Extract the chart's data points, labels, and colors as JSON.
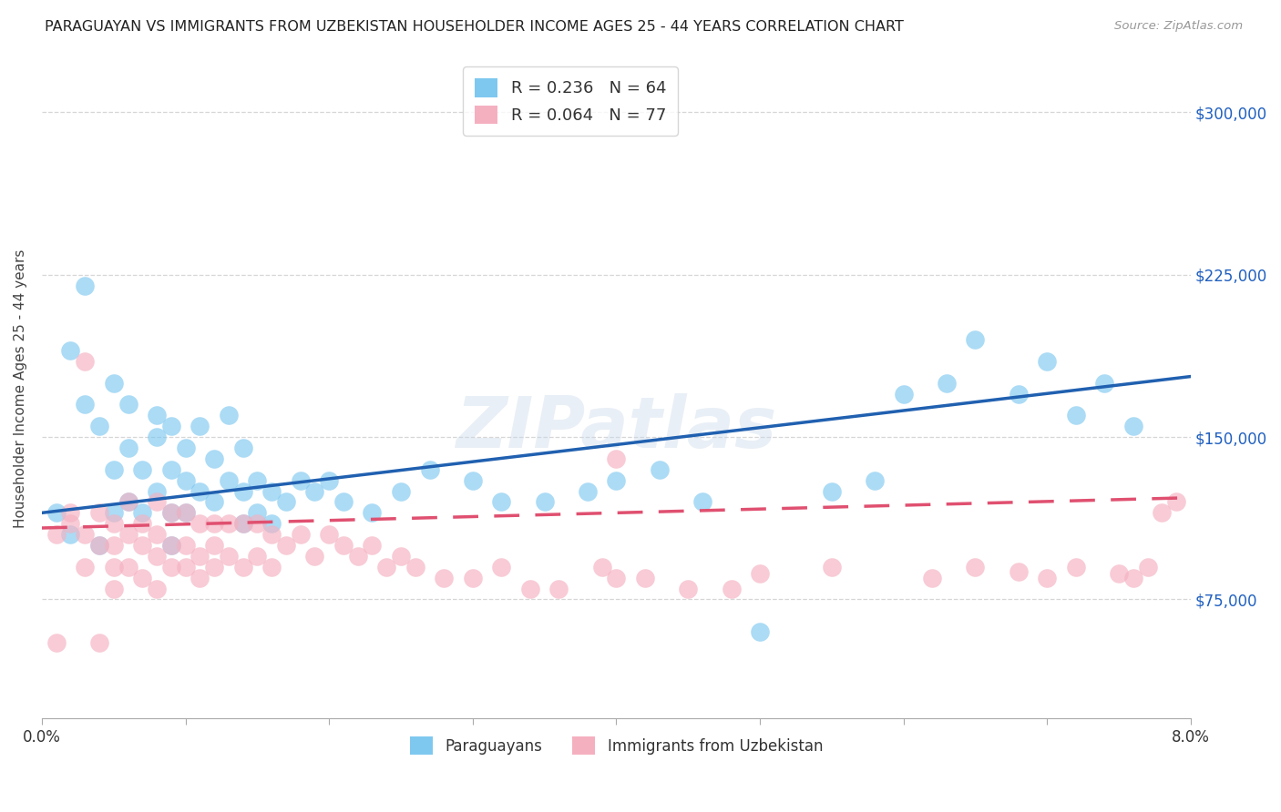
{
  "title": "PARAGUAYAN VS IMMIGRANTS FROM UZBEKISTAN HOUSEHOLDER INCOME AGES 25 - 44 YEARS CORRELATION CHART",
  "source": "Source: ZipAtlas.com",
  "ylabel": "Householder Income Ages 25 - 44 years",
  "xmin": 0.0,
  "xmax": 0.08,
  "ymin": 20000,
  "ymax": 325000,
  "yticks": [
    75000,
    150000,
    225000,
    300000
  ],
  "ytick_labels": [
    "$75,000",
    "$150,000",
    "$225,000",
    "$300,000"
  ],
  "xticks": [
    0.0,
    0.01,
    0.02,
    0.03,
    0.04,
    0.05,
    0.06,
    0.07,
    0.08
  ],
  "xtick_labels_show": [
    "0.0%",
    "",
    "",
    "",
    "",
    "",
    "",
    "",
    "8.0%"
  ],
  "blue_color": "#7ec8f0",
  "pink_color": "#f5b0c0",
  "blue_line_color": "#2060b0",
  "pink_line_color": "#e05070",
  "legend_blue_label": "R = 0.236   N = 64",
  "legend_pink_label": "R = 0.064   N = 77",
  "legend_r_color": "#2060c0",
  "watermark": "ZIPatlas",
  "paraguayans_label": "Paraguayans",
  "uzbekistan_label": "Immigrants from Uzbekistan",
  "blue_scatter_x": [
    0.001,
    0.002,
    0.002,
    0.003,
    0.003,
    0.004,
    0.004,
    0.005,
    0.005,
    0.005,
    0.006,
    0.006,
    0.006,
    0.007,
    0.007,
    0.008,
    0.008,
    0.008,
    0.009,
    0.009,
    0.009,
    0.009,
    0.01,
    0.01,
    0.01,
    0.011,
    0.011,
    0.012,
    0.012,
    0.013,
    0.013,
    0.014,
    0.014,
    0.014,
    0.015,
    0.015,
    0.016,
    0.016,
    0.017,
    0.018,
    0.019,
    0.02,
    0.021,
    0.023,
    0.025,
    0.027,
    0.03,
    0.032,
    0.035,
    0.038,
    0.04,
    0.043,
    0.046,
    0.05,
    0.055,
    0.058,
    0.06,
    0.063,
    0.065,
    0.068,
    0.07,
    0.072,
    0.074,
    0.076
  ],
  "blue_scatter_y": [
    115000,
    190000,
    105000,
    220000,
    165000,
    155000,
    100000,
    175000,
    135000,
    115000,
    165000,
    145000,
    120000,
    115000,
    135000,
    160000,
    150000,
    125000,
    155000,
    135000,
    115000,
    100000,
    145000,
    130000,
    115000,
    155000,
    125000,
    140000,
    120000,
    160000,
    130000,
    145000,
    125000,
    110000,
    130000,
    115000,
    125000,
    110000,
    120000,
    130000,
    125000,
    130000,
    120000,
    115000,
    125000,
    135000,
    130000,
    120000,
    120000,
    125000,
    130000,
    135000,
    120000,
    60000,
    125000,
    130000,
    170000,
    175000,
    195000,
    170000,
    185000,
    160000,
    175000,
    155000
  ],
  "pink_scatter_x": [
    0.001,
    0.001,
    0.002,
    0.002,
    0.003,
    0.003,
    0.003,
    0.004,
    0.004,
    0.004,
    0.005,
    0.005,
    0.005,
    0.005,
    0.006,
    0.006,
    0.006,
    0.007,
    0.007,
    0.007,
    0.008,
    0.008,
    0.008,
    0.008,
    0.009,
    0.009,
    0.009,
    0.01,
    0.01,
    0.01,
    0.011,
    0.011,
    0.011,
    0.012,
    0.012,
    0.012,
    0.013,
    0.013,
    0.014,
    0.014,
    0.015,
    0.015,
    0.016,
    0.016,
    0.017,
    0.018,
    0.019,
    0.02,
    0.021,
    0.022,
    0.023,
    0.024,
    0.025,
    0.026,
    0.028,
    0.03,
    0.032,
    0.034,
    0.036,
    0.039,
    0.042,
    0.045,
    0.048,
    0.05,
    0.04,
    0.04,
    0.055,
    0.062,
    0.065,
    0.068,
    0.07,
    0.072,
    0.075,
    0.076,
    0.077,
    0.078,
    0.079
  ],
  "pink_scatter_y": [
    55000,
    105000,
    110000,
    115000,
    185000,
    105000,
    90000,
    55000,
    115000,
    100000,
    110000,
    100000,
    90000,
    80000,
    120000,
    105000,
    90000,
    110000,
    100000,
    85000,
    120000,
    105000,
    95000,
    80000,
    115000,
    100000,
    90000,
    115000,
    100000,
    90000,
    110000,
    95000,
    85000,
    110000,
    100000,
    90000,
    110000,
    95000,
    110000,
    90000,
    110000,
    95000,
    105000,
    90000,
    100000,
    105000,
    95000,
    105000,
    100000,
    95000,
    100000,
    90000,
    95000,
    90000,
    85000,
    85000,
    90000,
    80000,
    80000,
    90000,
    85000,
    80000,
    80000,
    87000,
    85000,
    140000,
    90000,
    85000,
    90000,
    88000,
    85000,
    90000,
    87000,
    85000,
    90000,
    115000,
    120000
  ]
}
